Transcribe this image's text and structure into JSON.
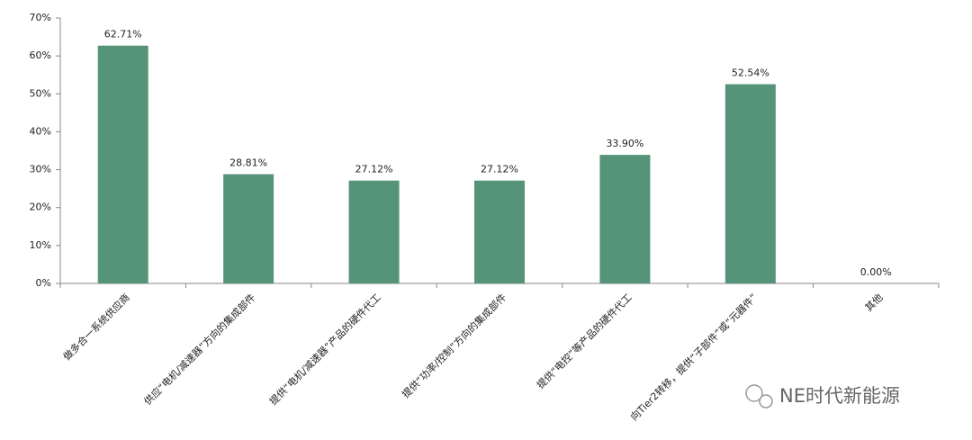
{
  "chart_data": {
    "type": "bar",
    "categories": [
      "做多合一系统供应商",
      "供应“电机/减速器”方向的集成部件",
      "提供“电机/减速器”产品的硬件代工",
      "提供“功率/控制”方向的集成部件",
      "提供“电控”等产品的硬件代工",
      "向Tier2转移，提供“子部件”或“元器件”",
      "其他"
    ],
    "values": [
      62.71,
      28.81,
      27.12,
      27.12,
      33.9,
      52.54,
      0
    ],
    "value_labels": [
      "62.71%",
      "28.81%",
      "27.12%",
      "27.12%",
      "33.90%",
      "52.54%",
      "0.00%"
    ],
    "color": "#559479",
    "ylim": [
      0,
      70
    ],
    "yticks": [
      {
        "value": 0,
        "label": "0%"
      },
      {
        "value": 10,
        "label": "10%"
      },
      {
        "value": 20,
        "label": "20%"
      },
      {
        "value": 30,
        "label": "30%"
      },
      {
        "value": 40,
        "label": "40%"
      },
      {
        "value": 50,
        "label": "50%"
      },
      {
        "value": 60,
        "label": "60%"
      },
      {
        "value": 70,
        "label": "70%"
      }
    ],
    "grid": false,
    "watermark": "NE时代新能源"
  }
}
